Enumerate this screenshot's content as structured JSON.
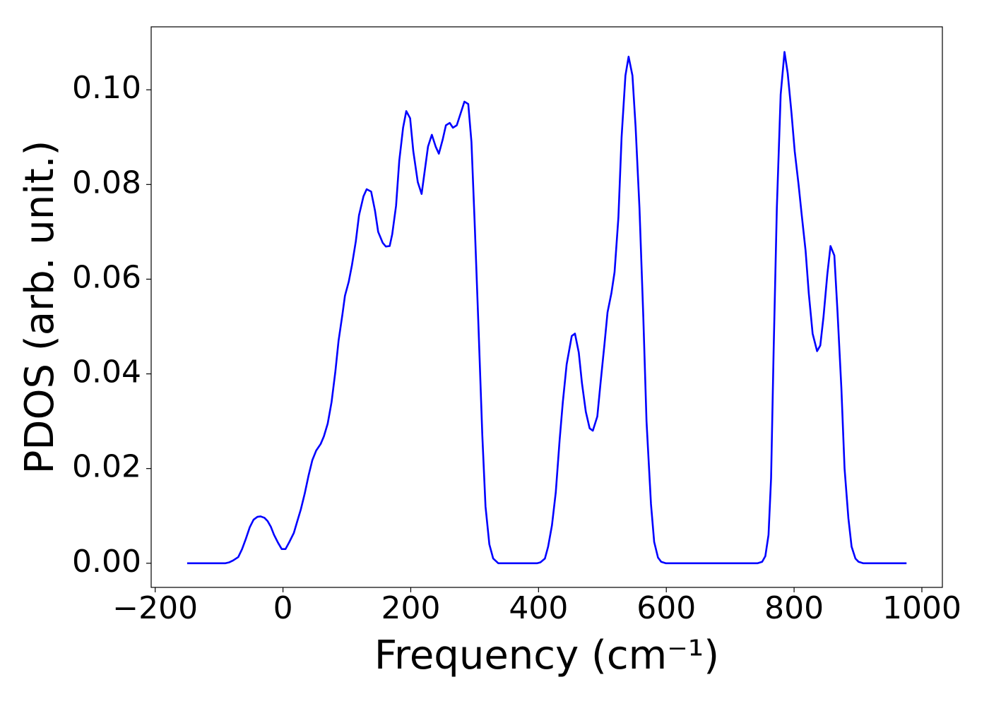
{
  "chart_data": {
    "type": "line",
    "xlabel": "Frequency (cm⁻¹)",
    "ylabel": "PDOS (arb. unit.)",
    "color": "#0000ff",
    "x": [
      -150,
      -90,
      -84,
      -78,
      -70,
      -64,
      -58,
      -52,
      -46,
      -40,
      -35,
      -29,
      -24,
      -19,
      -14,
      -8,
      -2,
      4,
      10,
      17,
      22,
      28,
      34,
      40,
      46,
      52,
      59,
      64,
      70,
      76,
      82,
      87,
      93,
      97,
      103,
      108,
      114,
      119,
      126,
      131,
      138,
      144,
      149,
      156,
      161,
      167,
      171,
      177,
      182,
      188,
      193,
      199,
      204,
      211,
      217,
      222,
      227,
      233,
      239,
      244,
      250,
      255,
      261,
      266,
      272,
      278,
      284,
      290,
      295,
      300,
      306,
      312,
      317,
      323,
      329,
      337,
      398,
      403,
      410,
      415,
      421,
      427,
      433,
      438,
      444,
      452,
      457,
      463,
      468,
      474,
      480,
      485,
      492,
      497,
      503,
      508,
      514,
      519,
      525,
      530,
      536,
      541,
      547,
      552,
      558,
      564,
      569,
      576,
      581,
      587,
      592,
      599,
      743,
      750,
      755,
      760,
      764,
      768,
      773,
      779,
      785,
      790,
      796,
      801,
      807,
      812,
      818,
      823,
      829,
      836,
      841,
      846,
      852,
      857,
      863,
      868,
      874,
      879,
      885,
      890,
      896,
      901,
      908,
      976
    ],
    "values": [
      0,
      0,
      0.0002,
      0.0006,
      0.0013,
      0.003,
      0.0052,
      0.0076,
      0.0092,
      0.0098,
      0.0099,
      0.0096,
      0.0089,
      0.0077,
      0.006,
      0.0044,
      0.003,
      0.003,
      0.0045,
      0.0064,
      0.0087,
      0.0114,
      0.0147,
      0.0185,
      0.0218,
      0.0238,
      0.0252,
      0.0268,
      0.0295,
      0.034,
      0.0405,
      0.047,
      0.0525,
      0.0565,
      0.0595,
      0.063,
      0.068,
      0.0735,
      0.0775,
      0.079,
      0.0785,
      0.0745,
      0.07,
      0.0677,
      0.0669,
      0.067,
      0.0695,
      0.0755,
      0.085,
      0.092,
      0.0955,
      0.094,
      0.087,
      0.0805,
      0.078,
      0.083,
      0.088,
      0.0905,
      0.088,
      0.0865,
      0.0895,
      0.0925,
      0.093,
      0.092,
      0.0925,
      0.095,
      0.0975,
      0.097,
      0.089,
      0.072,
      0.05,
      0.027,
      0.012,
      0.004,
      0.001,
      0,
      0,
      0.0002,
      0.001,
      0.0035,
      0.008,
      0.015,
      0.026,
      0.034,
      0.042,
      0.048,
      0.0485,
      0.0445,
      0.038,
      0.032,
      0.0285,
      0.028,
      0.031,
      0.038,
      0.046,
      0.053,
      0.057,
      0.0615,
      0.073,
      0.09,
      0.103,
      0.107,
      0.103,
      0.092,
      0.075,
      0.052,
      0.03,
      0.0125,
      0.0045,
      0.0012,
      0.0003,
      0,
      0,
      0.0003,
      0.0015,
      0.006,
      0.018,
      0.045,
      0.075,
      0.099,
      0.108,
      0.1035,
      0.095,
      0.087,
      0.08,
      0.0735,
      0.066,
      0.057,
      0.0485,
      0.0448,
      0.046,
      0.052,
      0.061,
      0.067,
      0.065,
      0.053,
      0.037,
      0.02,
      0.0095,
      0.0035,
      0.001,
      0.0003,
      0,
      0
    ],
    "xlim": [
      -206.3,
      1032.1
    ],
    "ylim": [
      -0.0051,
      0.1133
    ],
    "xticks": [
      {
        "value": -200,
        "label": "−200"
      },
      0,
      200,
      400,
      600,
      800,
      1000
    ],
    "yticks": [
      {
        "value": 0,
        "label": "0.00"
      },
      {
        "value": 0.02,
        "label": "0.02"
      },
      {
        "value": 0.04,
        "label": "0.04"
      },
      {
        "value": 0.06,
        "label": "0.06"
      },
      {
        "value": 0.08,
        "label": "0.08"
      },
      {
        "value": 0.1,
        "label": "0.10"
      }
    ],
    "grid": false
  }
}
